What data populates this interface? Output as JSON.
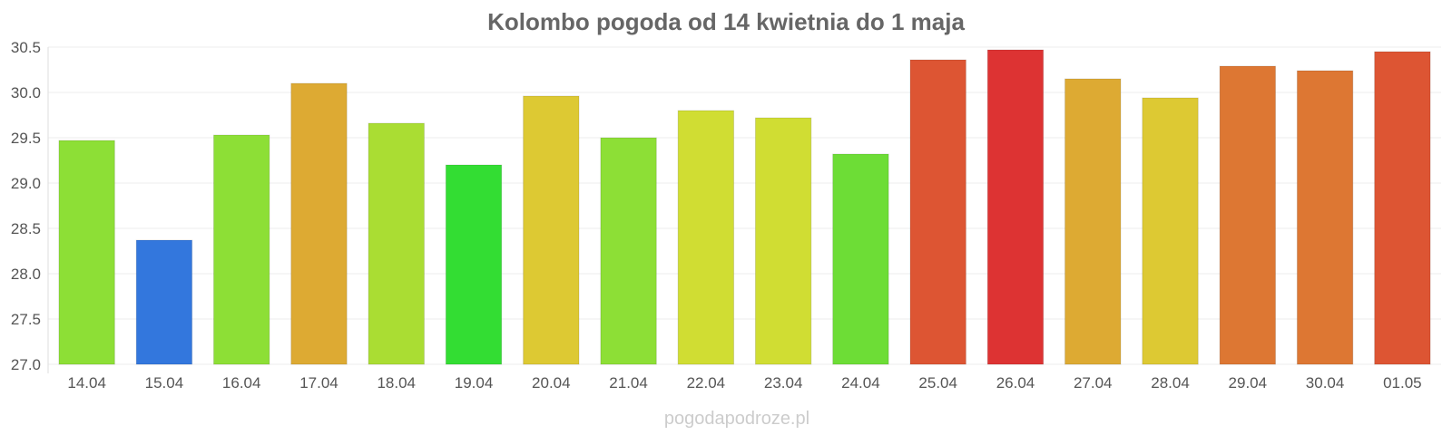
{
  "chart_data": {
    "type": "bar",
    "title": "Kolombo pogoda od 14 kwietnia do 1 maja",
    "xlabel": "",
    "ylabel": "",
    "ylim": [
      27.0,
      30.5
    ],
    "yticks": [
      "27.0",
      "27.5",
      "28.0",
      "28.5",
      "29.0",
      "29.5",
      "30.0",
      "30.5"
    ],
    "grid": true,
    "legend": "none",
    "categories": [
      "14.04",
      "15.04",
      "16.04",
      "17.04",
      "18.04",
      "19.04",
      "20.04",
      "21.04",
      "22.04",
      "23.04",
      "24.04",
      "25.04",
      "26.04",
      "27.04",
      "28.04",
      "29.04",
      "30.04",
      "01.05"
    ],
    "values": [
      29.47,
      28.37,
      29.53,
      30.1,
      29.66,
      29.2,
      29.96,
      29.5,
      29.8,
      29.72,
      29.32,
      30.36,
      30.47,
      30.15,
      29.94,
      30.29,
      30.24,
      30.45
    ],
    "colors": [
      "#8ddf36",
      "#3377dd",
      "#8ddf36",
      "#ddaa33",
      "#aadd33",
      "#33dd33",
      "#ddc933",
      "#8ddf36",
      "#d0dd33",
      "#d0dd33",
      "#6ddd36",
      "#dd5533",
      "#dd3333",
      "#ddaa33",
      "#ddc933",
      "#dd7733",
      "#dd7733",
      "#dd5533"
    ]
  },
  "watermark": "pogodapodroze.pl"
}
